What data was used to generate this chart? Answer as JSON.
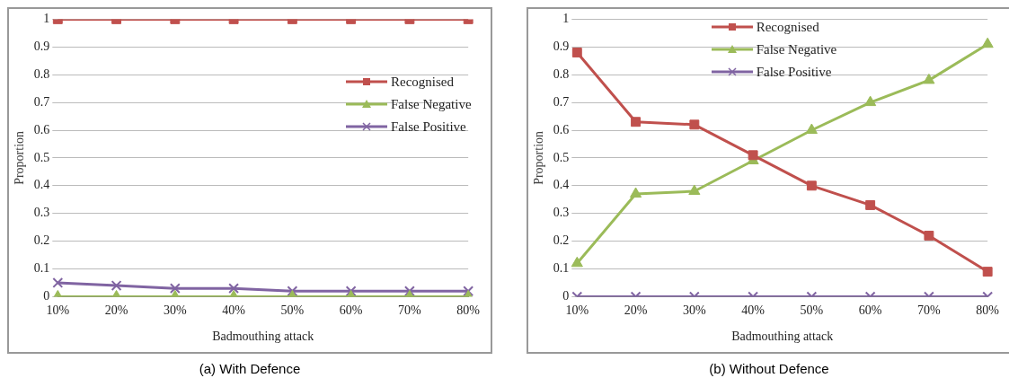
{
  "chart_data": [
    {
      "type": "line",
      "title": "(a) With Defence",
      "xlabel": "Badmouthing attack",
      "ylabel": "Proportion",
      "categories": [
        "10%",
        "20%",
        "30%",
        "40%",
        "50%",
        "60%",
        "70%",
        "80%"
      ],
      "ylim": [
        0,
        1
      ],
      "yticks": [
        0,
        0.1,
        0.2,
        0.3,
        0.4,
        0.5,
        0.6,
        0.7,
        0.8,
        0.9,
        1
      ],
      "grid": "y",
      "legend": "top right",
      "series": [
        {
          "name": "Recognised",
          "color": "#c0504d",
          "marker": "square",
          "values": [
            1,
            1,
            1,
            1,
            1,
            1,
            1,
            1
          ]
        },
        {
          "name": "False Negative",
          "color": "#9bbb59",
          "marker": "triangle",
          "values": [
            0,
            0,
            0,
            0,
            0,
            0,
            0,
            0
          ]
        },
        {
          "name": "False Positive",
          "color": "#8064a2",
          "marker": "cross",
          "values": [
            0.05,
            0.04,
            0.03,
            0.03,
            0.02,
            0.02,
            0.02,
            0.02
          ]
        }
      ]
    },
    {
      "type": "line",
      "title": "(b) Without Defence",
      "xlabel": "Badmouthing attack",
      "ylabel": "Proportion",
      "categories": [
        "10%",
        "20%",
        "30%",
        "40%",
        "50%",
        "60%",
        "70%",
        "80%"
      ],
      "ylim": [
        0,
        1
      ],
      "yticks": [
        0,
        0.1,
        0.2,
        0.3,
        0.4,
        0.5,
        0.6,
        0.7,
        0.8,
        0.9,
        1
      ],
      "grid": "y",
      "legend": "top",
      "series": [
        {
          "name": "Recognised",
          "color": "#c0504d",
          "marker": "square",
          "values": [
            0.88,
            0.63,
            0.62,
            0.51,
            0.4,
            0.33,
            0.22,
            0.09
          ]
        },
        {
          "name": "False Negative",
          "color": "#9bbb59",
          "marker": "triangle",
          "values": [
            0.12,
            0.37,
            0.38,
            0.49,
            0.6,
            0.7,
            0.78,
            0.91
          ]
        },
        {
          "name": "False Positive",
          "color": "#8064a2",
          "marker": "cross",
          "values": [
            0,
            0,
            0,
            0,
            0,
            0,
            0,
            0
          ]
        }
      ]
    }
  ]
}
